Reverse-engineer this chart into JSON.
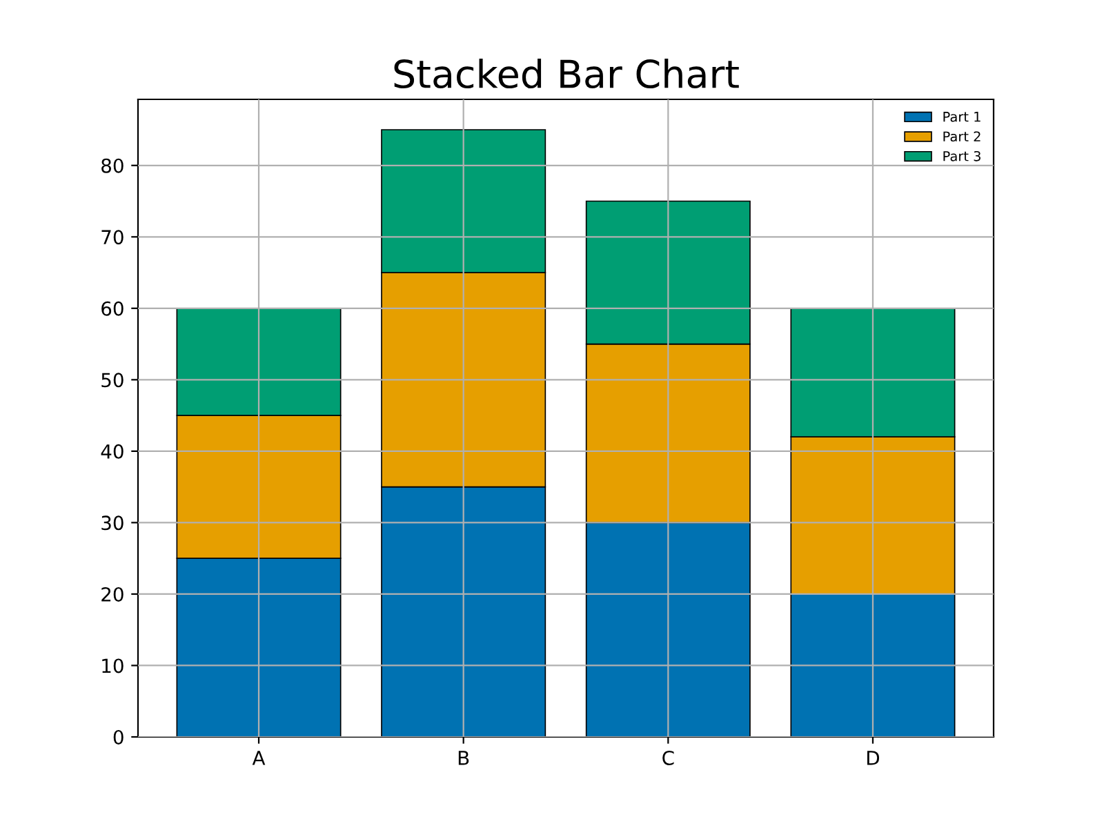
{
  "chart_data": {
    "type": "bar",
    "title": "Stacked Bar Chart",
    "categories": [
      "A",
      "B",
      "C",
      "D"
    ],
    "stacked": true,
    "series": [
      {
        "name": "Part 1",
        "color": "#0072b2",
        "values": [
          25,
          35,
          30,
          20
        ]
      },
      {
        "name": "Part 2",
        "color": "#e69f00",
        "values": [
          20,
          30,
          25,
          22
        ]
      },
      {
        "name": "Part 3",
        "color": "#009e73",
        "values": [
          15,
          20,
          20,
          18
        ]
      }
    ],
    "ylim": [
      0,
      89.25
    ],
    "yticks": [
      0,
      10,
      20,
      30,
      40,
      50,
      60,
      70,
      80
    ],
    "grid": true,
    "legend": "top right"
  }
}
